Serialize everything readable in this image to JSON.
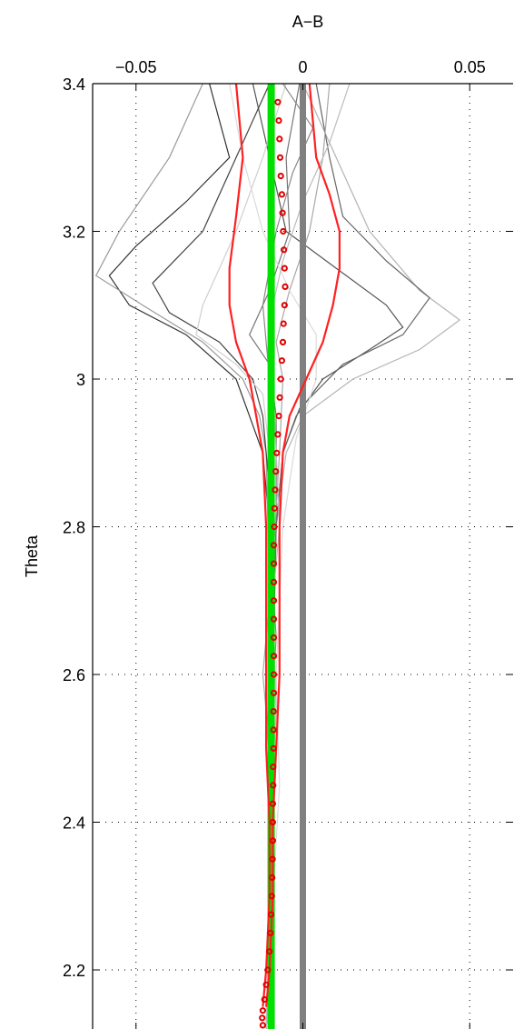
{
  "chart_data": {
    "type": "line",
    "title": "",
    "xlabel": "A−B",
    "ylabel": "Theta",
    "xlim": [
      -0.063,
      0.063
    ],
    "ylim": [
      2.12,
      3.4
    ],
    "x_ticks": [
      -0.05,
      0,
      0.05
    ],
    "x_tick_labels": [
      "−0.05",
      "0",
      "0.05"
    ],
    "x_axis_position": "top",
    "y_ticks": [
      2.2,
      2.4,
      2.6,
      2.8,
      3.0,
      3.2,
      3.4
    ],
    "y_tick_labels": [
      "2.2",
      "2.4",
      "2.6",
      "2.8",
      "3",
      "3.2",
      "3.4"
    ],
    "grid": true,
    "colors": {
      "zero_line": "#808080",
      "mean_line": "#00e000",
      "envelope": "#ff2020",
      "markers": "#e00000",
      "ensemble": "#8c8c8c"
    },
    "series": [
      {
        "role": "zero-reference",
        "style": "thick gray vertical line",
        "x": [
          0,
          0
        ],
        "y": [
          2.12,
          3.4
        ]
      },
      {
        "role": "mean-offset",
        "style": "thick green vertical line",
        "x": [
          -0.0095,
          -0.0095
        ],
        "y": [
          2.12,
          3.4
        ]
      },
      {
        "role": "lower-envelope",
        "style": "red line",
        "points": [
          [
            3.4,
            -0.02
          ],
          [
            3.3,
            -0.018
          ],
          [
            3.22,
            -0.02
          ],
          [
            3.15,
            -0.022
          ],
          [
            3.1,
            -0.022
          ],
          [
            3.05,
            -0.02
          ],
          [
            3.0,
            -0.016
          ],
          [
            2.95,
            -0.014
          ],
          [
            2.9,
            -0.012
          ],
          [
            2.8,
            -0.011
          ],
          [
            2.7,
            -0.011
          ],
          [
            2.6,
            -0.011
          ],
          [
            2.5,
            -0.011
          ],
          [
            2.4,
            -0.01
          ],
          [
            2.3,
            -0.01
          ],
          [
            2.2,
            -0.011
          ],
          [
            2.15,
            -0.012
          ]
        ]
      },
      {
        "role": "upper-envelope",
        "style": "red line",
        "points": [
          [
            3.4,
            0.002
          ],
          [
            3.3,
            0.004
          ],
          [
            3.25,
            0.008
          ],
          [
            3.2,
            0.011
          ],
          [
            3.15,
            0.011
          ],
          [
            3.1,
            0.009
          ],
          [
            3.05,
            0.006
          ],
          [
            3.0,
            0.001
          ],
          [
            2.95,
            -0.004
          ],
          [
            2.9,
            -0.006
          ],
          [
            2.8,
            -0.007
          ],
          [
            2.7,
            -0.007
          ],
          [
            2.6,
            -0.007
          ],
          [
            2.5,
            -0.008
          ],
          [
            2.4,
            -0.009
          ],
          [
            2.3,
            -0.009
          ],
          [
            2.2,
            -0.01
          ],
          [
            2.15,
            -0.011
          ]
        ]
      },
      {
        "role": "median",
        "style": "red circle markers",
        "points": [
          [
            3.375,
            -0.0075
          ],
          [
            3.35,
            -0.0072
          ],
          [
            3.325,
            -0.007
          ],
          [
            3.3,
            -0.0068
          ],
          [
            3.275,
            -0.0066
          ],
          [
            3.25,
            -0.0063
          ],
          [
            3.225,
            -0.0061
          ],
          [
            3.2,
            -0.0059
          ],
          [
            3.175,
            -0.0057
          ],
          [
            3.15,
            -0.0055
          ],
          [
            3.125,
            -0.0053
          ],
          [
            3.1,
            -0.0055
          ],
          [
            3.075,
            -0.0058
          ],
          [
            3.05,
            -0.006
          ],
          [
            3.025,
            -0.0063
          ],
          [
            3.0,
            -0.0066
          ],
          [
            2.975,
            -0.0069
          ],
          [
            2.95,
            -0.0072
          ],
          [
            2.925,
            -0.0075
          ],
          [
            2.9,
            -0.0078
          ],
          [
            2.875,
            -0.0081
          ],
          [
            2.85,
            -0.0083
          ],
          [
            2.825,
            -0.0085
          ],
          [
            2.8,
            -0.0086
          ],
          [
            2.775,
            -0.0087
          ],
          [
            2.75,
            -0.0087
          ],
          [
            2.725,
            -0.0087
          ],
          [
            2.7,
            -0.0087
          ],
          [
            2.675,
            -0.0087
          ],
          [
            2.65,
            -0.0087
          ],
          [
            2.625,
            -0.0087
          ],
          [
            2.6,
            -0.0087
          ],
          [
            2.575,
            -0.0087
          ],
          [
            2.55,
            -0.0088
          ],
          [
            2.525,
            -0.0088
          ],
          [
            2.5,
            -0.0088
          ],
          [
            2.475,
            -0.0089
          ],
          [
            2.45,
            -0.0089
          ],
          [
            2.425,
            -0.009
          ],
          [
            2.4,
            -0.009
          ],
          [
            2.375,
            -0.009
          ],
          [
            2.35,
            -0.0091
          ],
          [
            2.325,
            -0.0092
          ],
          [
            2.3,
            -0.0093
          ],
          [
            2.275,
            -0.0095
          ],
          [
            2.25,
            -0.0097
          ],
          [
            2.225,
            -0.01
          ],
          [
            2.2,
            -0.0105
          ],
          [
            2.18,
            -0.011
          ],
          [
            2.16,
            -0.0115
          ],
          [
            2.145,
            -0.012
          ],
          [
            2.135,
            -0.0122
          ],
          [
            2.125,
            -0.012
          ]
        ]
      }
    ],
    "ensemble_profiles": [
      {
        "shade": "#333333",
        "points": [
          [
            3.4,
            -0.028
          ],
          [
            3.3,
            -0.022
          ],
          [
            3.24,
            -0.035
          ],
          [
            3.18,
            -0.05
          ],
          [
            3.14,
            -0.058
          ],
          [
            3.1,
            -0.052
          ],
          [
            3.06,
            -0.035
          ],
          [
            3.0,
            -0.02
          ],
          [
            2.95,
            -0.016
          ],
          [
            2.9,
            -0.012
          ],
          [
            2.8,
            -0.01
          ],
          [
            2.6,
            -0.01
          ],
          [
            2.4,
            -0.009
          ],
          [
            2.2,
            -0.01
          ],
          [
            2.12,
            -0.011
          ]
        ]
      },
      {
        "shade": "#555555",
        "points": [
          [
            3.4,
            -0.015
          ],
          [
            3.3,
            -0.01
          ],
          [
            3.2,
            -0.005
          ],
          [
            3.15,
            0.01
          ],
          [
            3.1,
            0.025
          ],
          [
            3.07,
            0.03
          ],
          [
            3.04,
            0.02
          ],
          [
            3.0,
            0.006
          ],
          [
            2.95,
            -0.002
          ],
          [
            2.9,
            -0.006
          ],
          [
            2.8,
            -0.008
          ],
          [
            2.6,
            -0.009
          ],
          [
            2.4,
            -0.009
          ],
          [
            2.2,
            -0.01
          ],
          [
            2.12,
            -0.011
          ]
        ]
      },
      {
        "shade": "#9a9a9a",
        "points": [
          [
            3.4,
            -0.03
          ],
          [
            3.3,
            -0.04
          ],
          [
            3.2,
            -0.055
          ],
          [
            3.14,
            -0.062
          ],
          [
            3.1,
            -0.048
          ],
          [
            3.05,
            -0.03
          ],
          [
            3.0,
            -0.018
          ],
          [
            2.95,
            -0.013
          ],
          [
            2.9,
            -0.011
          ],
          [
            2.7,
            -0.01
          ],
          [
            2.5,
            -0.009
          ],
          [
            2.3,
            -0.01
          ],
          [
            2.12,
            -0.01
          ]
        ]
      },
      {
        "shade": "#b4b4b4",
        "points": [
          [
            3.4,
            0.0
          ],
          [
            3.3,
            0.01
          ],
          [
            3.2,
            0.02
          ],
          [
            3.12,
            0.035
          ],
          [
            3.08,
            0.047
          ],
          [
            3.04,
            0.035
          ],
          [
            3.0,
            0.015
          ],
          [
            2.95,
            0.0
          ],
          [
            2.9,
            -0.005
          ],
          [
            2.8,
            -0.008
          ],
          [
            2.6,
            -0.009
          ],
          [
            2.4,
            -0.009
          ],
          [
            2.2,
            -0.01
          ],
          [
            2.12,
            -0.011
          ]
        ]
      },
      {
        "shade": "#444444",
        "points": [
          [
            3.4,
            -0.01
          ],
          [
            3.3,
            -0.02
          ],
          [
            3.2,
            -0.03
          ],
          [
            3.13,
            -0.045
          ],
          [
            3.09,
            -0.04
          ],
          [
            3.05,
            -0.025
          ],
          [
            3.0,
            -0.015
          ],
          [
            2.95,
            -0.012
          ],
          [
            2.85,
            -0.01
          ],
          [
            2.7,
            -0.009
          ],
          [
            2.5,
            -0.009
          ],
          [
            2.3,
            -0.01
          ],
          [
            2.12,
            -0.011
          ]
        ]
      },
      {
        "shade": "#666666",
        "points": [
          [
            3.4,
            0.004
          ],
          [
            3.3,
            0.008
          ],
          [
            3.22,
            0.012
          ],
          [
            3.16,
            0.025
          ],
          [
            3.11,
            0.038
          ],
          [
            3.06,
            0.03
          ],
          [
            3.02,
            0.012
          ],
          [
            2.96,
            -0.001
          ],
          [
            2.9,
            -0.006
          ],
          [
            2.8,
            -0.008
          ],
          [
            2.6,
            -0.009
          ],
          [
            2.4,
            -0.009
          ],
          [
            2.2,
            -0.01
          ],
          [
            2.12,
            -0.011
          ]
        ]
      },
      {
        "shade": "#cfcfcf",
        "points": [
          [
            3.4,
            -0.005
          ],
          [
            3.3,
            -0.012
          ],
          [
            3.2,
            -0.02
          ],
          [
            3.1,
            -0.03
          ],
          [
            3.06,
            -0.032
          ],
          [
            3.02,
            -0.02
          ],
          [
            2.98,
            -0.012
          ],
          [
            2.9,
            -0.01
          ],
          [
            2.7,
            -0.009
          ],
          [
            2.5,
            -0.009
          ],
          [
            2.3,
            -0.01
          ],
          [
            2.12,
            -0.011
          ]
        ]
      },
      {
        "shade": "#777777",
        "points": [
          [
            3.4,
            -0.001
          ],
          [
            3.3,
            -0.005
          ],
          [
            3.2,
            -0.004
          ],
          [
            3.12,
            -0.01
          ],
          [
            3.06,
            -0.016
          ],
          [
            3.02,
            -0.01
          ],
          [
            2.95,
            -0.008
          ],
          [
            2.8,
            -0.008
          ],
          [
            2.6,
            -0.01
          ],
          [
            2.5,
            -0.011
          ],
          [
            2.4,
            -0.009
          ],
          [
            2.2,
            -0.01
          ],
          [
            2.12,
            -0.011
          ]
        ]
      },
      {
        "shade": "#a8a8a8",
        "points": [
          [
            3.4,
            0.008
          ],
          [
            3.3,
            0.006
          ],
          [
            3.2,
            0.002
          ],
          [
            3.12,
            -0.004
          ],
          [
            3.05,
            -0.008
          ],
          [
            3.0,
            -0.006
          ],
          [
            2.9,
            -0.007
          ],
          [
            2.75,
            -0.009
          ],
          [
            2.6,
            -0.012
          ],
          [
            2.55,
            -0.011
          ],
          [
            2.4,
            -0.009
          ],
          [
            2.2,
            -0.01
          ],
          [
            2.12,
            -0.011
          ]
        ]
      },
      {
        "shade": "#dadada",
        "points": [
          [
            3.4,
            -0.022
          ],
          [
            3.3,
            -0.018
          ],
          [
            3.2,
            -0.012
          ],
          [
            3.12,
            -0.004
          ],
          [
            3.06,
            0.004
          ],
          [
            3.0,
            0.004
          ],
          [
            2.92,
            -0.002
          ],
          [
            2.8,
            -0.006
          ],
          [
            2.6,
            -0.008
          ],
          [
            2.45,
            -0.007
          ],
          [
            2.3,
            -0.009
          ],
          [
            2.12,
            -0.011
          ]
        ]
      },
      {
        "shade": "#8a8a8a",
        "points": [
          [
            3.4,
            -0.006
          ],
          [
            3.34,
            0.003
          ],
          [
            3.28,
            -0.003
          ],
          [
            3.2,
            -0.008
          ],
          [
            3.1,
            -0.012
          ],
          [
            3.0,
            -0.01
          ],
          [
            2.9,
            -0.009
          ],
          [
            2.8,
            -0.01
          ],
          [
            2.65,
            -0.008
          ],
          [
            2.5,
            -0.01
          ],
          [
            2.35,
            -0.009
          ],
          [
            2.2,
            -0.01
          ],
          [
            2.12,
            -0.011
          ]
        ]
      },
      {
        "shade": "#bcbcbc",
        "points": [
          [
            3.4,
            0.014
          ],
          [
            3.32,
            0.008
          ],
          [
            3.24,
            0.0
          ],
          [
            3.16,
            -0.006
          ],
          [
            3.08,
            -0.01
          ],
          [
            3.0,
            -0.009
          ],
          [
            2.9,
            -0.008
          ],
          [
            2.8,
            -0.007
          ],
          [
            2.7,
            -0.009
          ],
          [
            2.55,
            -0.008
          ],
          [
            2.4,
            -0.01
          ],
          [
            2.25,
            -0.009
          ],
          [
            2.12,
            -0.011
          ]
        ]
      }
    ]
  }
}
